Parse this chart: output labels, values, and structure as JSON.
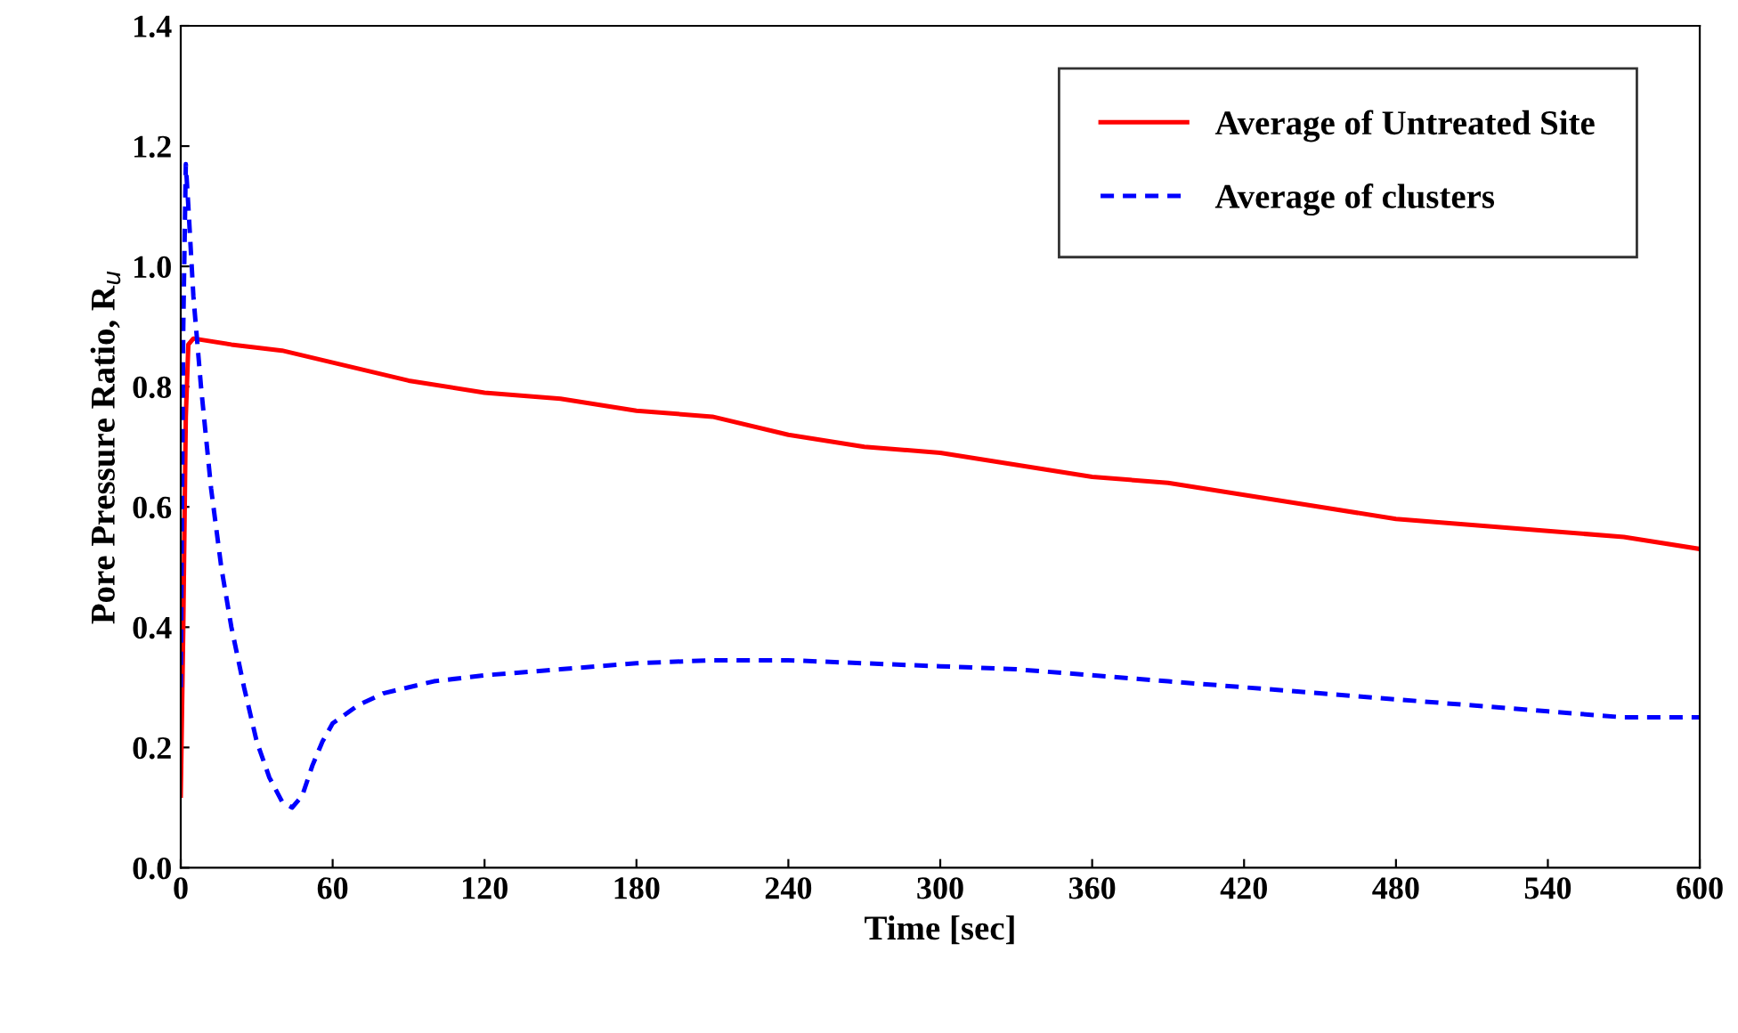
{
  "chart_data": {
    "type": "line",
    "xlabel": "Time [sec]",
    "ylabel": "Pore Pressure Ratio, R$_{u}$",
    "xlim": [
      0,
      600
    ],
    "xticks": [
      0,
      60,
      120,
      180,
      240,
      300,
      360,
      420,
      480,
      540,
      600
    ],
    "ylim": [
      0,
      1.4
    ],
    "yticks": [
      {
        "value": 0,
        "label": "0.0"
      },
      0.2,
      0.4,
      0.6,
      0.8,
      {
        "value": 1,
        "label": "1.0"
      },
      1.2,
      1.4
    ],
    "grid": false,
    "legend": "top right",
    "marker": "none",
    "series": [
      {
        "name": "Average of Untreated Site",
        "color": "#ff0000",
        "line_style": "solid",
        "x": [
          0,
          1,
          2,
          3,
          5,
          20,
          40,
          60,
          90,
          120,
          150,
          180,
          210,
          240,
          270,
          300,
          330,
          360,
          390,
          420,
          450,
          480,
          510,
          540,
          570,
          600
        ],
        "values": [
          0.12,
          0.4,
          0.75,
          0.87,
          0.88,
          0.87,
          0.86,
          0.84,
          0.81,
          0.79,
          0.78,
          0.76,
          0.75,
          0.72,
          0.7,
          0.69,
          0.67,
          0.65,
          0.64,
          0.62,
          0.6,
          0.58,
          0.57,
          0.56,
          0.55,
          0.53
        ]
      },
      {
        "name": "Average of clusters",
        "color": "#0000ff",
        "line_style": "dashed",
        "x": [
          0,
          1,
          2,
          3,
          5,
          8,
          12,
          16,
          20,
          25,
          30,
          35,
          40,
          44,
          48,
          52,
          56,
          60,
          70,
          80,
          100,
          120,
          150,
          180,
          210,
          240,
          270,
          300,
          330,
          360,
          390,
          420,
          450,
          480,
          510,
          540,
          570,
          600
        ],
        "values": [
          0.3,
          0.9,
          1.17,
          1.1,
          0.95,
          0.8,
          0.63,
          0.5,
          0.4,
          0.3,
          0.21,
          0.15,
          0.11,
          0.1,
          0.12,
          0.17,
          0.21,
          0.24,
          0.27,
          0.29,
          0.31,
          0.32,
          0.33,
          0.34,
          0.345,
          0.345,
          0.34,
          0.335,
          0.33,
          0.32,
          0.31,
          0.3,
          0.29,
          0.28,
          0.27,
          0.26,
          0.25,
          0.25
        ]
      }
    ]
  }
}
